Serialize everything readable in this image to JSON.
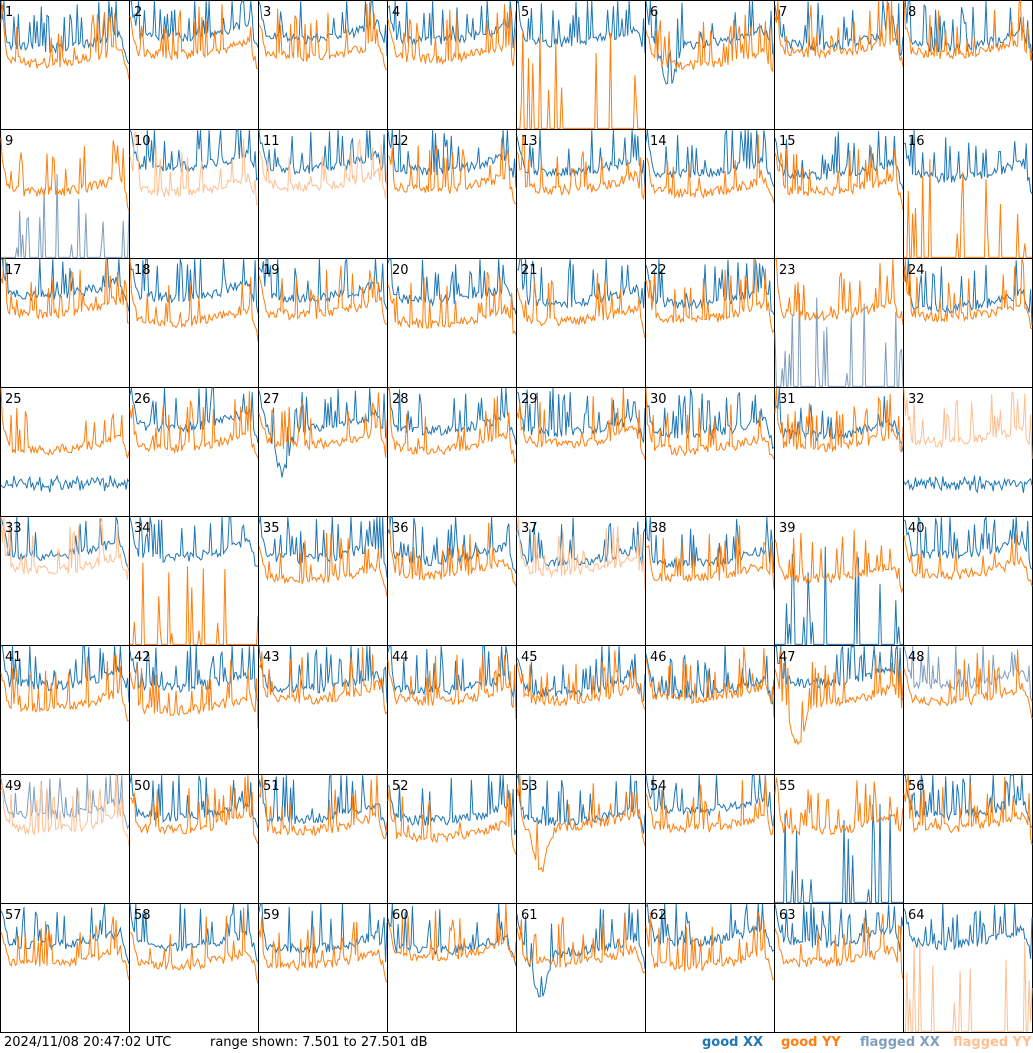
{
  "chart_data": {
    "type": "line",
    "layout": "small multiples, 8 columns x 8 rows, one panel per antenna",
    "panels": [
      1,
      2,
      3,
      4,
      5,
      6,
      7,
      8,
      9,
      10,
      11,
      12,
      13,
      14,
      15,
      16,
      17,
      18,
      19,
      20,
      21,
      22,
      23,
      24,
      25,
      26,
      27,
      28,
      29,
      30,
      31,
      32,
      33,
      34,
      35,
      36,
      37,
      38,
      39,
      40,
      41,
      42,
      43,
      44,
      45,
      46,
      47,
      48,
      49,
      50,
      51,
      52,
      53,
      54,
      55,
      56,
      57,
      58,
      59,
      60,
      61,
      62,
      63,
      64
    ],
    "panel_labels": [
      "1",
      "2",
      "3",
      "4",
      "5",
      "6",
      "7",
      "8",
      "9",
      "10",
      "11",
      "12",
      "13",
      "14",
      "15",
      "16",
      "17",
      "18",
      "19",
      "20",
      "21",
      "22",
      "23",
      "24",
      "25",
      "26",
      "27",
      "28",
      "29",
      "30",
      "31",
      "32",
      "33",
      "34",
      "35",
      "36",
      "37",
      "38",
      "39",
      "40",
      "41",
      "42",
      "43",
      "44",
      "45",
      "46",
      "47",
      "48",
      "49",
      "50",
      "51",
      "52",
      "53",
      "54",
      "55",
      "56",
      "57",
      "58",
      "59",
      "60",
      "61",
      "62",
      "63",
      "64"
    ],
    "ylim": [
      7.501,
      27.501
    ],
    "y_unit": "dB",
    "grid": false,
    "series": [
      {
        "key": "good_xx",
        "name": "good XX",
        "color": "#1f77b4"
      },
      {
        "key": "good_yy",
        "name": "good YY",
        "color": "#ff7f0e"
      },
      {
        "key": "flagged_xx",
        "name": "flagged XX",
        "color": "#7f9fbf"
      },
      {
        "key": "flagged_yy",
        "name": "flagged YY",
        "color": "#ffbf90"
      }
    ],
    "panel_flags": {
      "9": [
        "flagged_xx"
      ],
      "10": [
        "flagged_yy"
      ],
      "11": [
        "flagged_yy"
      ],
      "23": [
        "flagged_xx"
      ],
      "32": [
        "flagged_yy"
      ],
      "33": [
        "flagged_yy"
      ],
      "37": [
        "flagged_yy"
      ],
      "48": [
        "flagged_xx"
      ],
      "49": [
        "flagged_xx",
        "flagged_yy"
      ],
      "64": [
        "flagged_yy"
      ]
    },
    "panel_shapes": {
      "5": {
        "yy": "spikes"
      },
      "6": {
        "xx": "dip"
      },
      "9": {
        "xx": "spikes"
      },
      "16": {
        "yy": "spikes"
      },
      "23": {
        "xx": "spikes"
      },
      "25": {
        "xx": "low"
      },
      "27": {
        "xx": "dip"
      },
      "32": {
        "xx": "low"
      },
      "34": {
        "yy": "spikes"
      },
      "39": {
        "xx": "spikes"
      },
      "47": {
        "yy": "dip"
      },
      "53": {
        "yy": "dip"
      },
      "55": {
        "xx": "spikes"
      },
      "61": {
        "xx": "dip"
      },
      "64": {
        "yy": "spikes"
      }
    }
  },
  "footer": {
    "timestamp": "2024/11/08 20:47:02 UTC",
    "range_text": "range shown: 7.501 to 27.501 dB"
  },
  "legend": {
    "good_xx": "good XX",
    "good_yy": "good YY",
    "flagged_xx": "flagged XX",
    "flagged_yy": "flagged YY"
  }
}
